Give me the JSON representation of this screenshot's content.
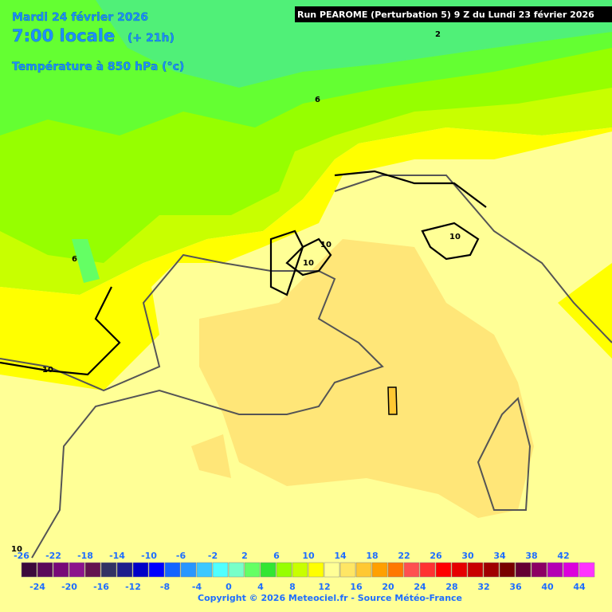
{
  "header": {
    "run": "Run PEAROME (Perturbation 5) 9 Z du Lundi 23 février 2026",
    "date": "Mardi 24 février 2026",
    "time": "7:00 locale",
    "lead": "(+ 21h)",
    "parameter": "Température à 850 hPa (°c)"
  },
  "contour_labels": [
    "2",
    "6",
    "10",
    "10",
    "10",
    "6",
    "10",
    "10"
  ],
  "legend": {
    "top_labels": [
      -26,
      -22,
      -18,
      -14,
      -10,
      -6,
      -2,
      2,
      6,
      10,
      14,
      18,
      22,
      26,
      30,
      34,
      38,
      42
    ],
    "bottom_labels": [
      -24,
      -20,
      -16,
      -12,
      -8,
      -4,
      0,
      4,
      8,
      12,
      16,
      20,
      24,
      28,
      32,
      36,
      40,
      44
    ],
    "colors": [
      "#3c0a3c",
      "#5a0a5a",
      "#780a78",
      "#8c148c",
      "#641450",
      "#323264",
      "#1e1e8c",
      "#0000c8",
      "#0000ff",
      "#1464ff",
      "#2896ff",
      "#3cc8ff",
      "#50ffff",
      "#78ffc8",
      "#64ff64",
      "#32e632",
      "#96ff00",
      "#c8ff00",
      "#ffff00",
      "#ffff96",
      "#ffe664",
      "#ffc832",
      "#ffa000",
      "#ff7800",
      "#ff5050",
      "#ff3232",
      "#ff0000",
      "#e60000",
      "#c80000",
      "#a00000",
      "#780000",
      "#640032",
      "#8c0064",
      "#b400b4",
      "#dc00dc",
      "#ff32ff"
    ]
  },
  "copyright": "Copyright © 2026 Meteociel.fr - Source Météo-France"
}
